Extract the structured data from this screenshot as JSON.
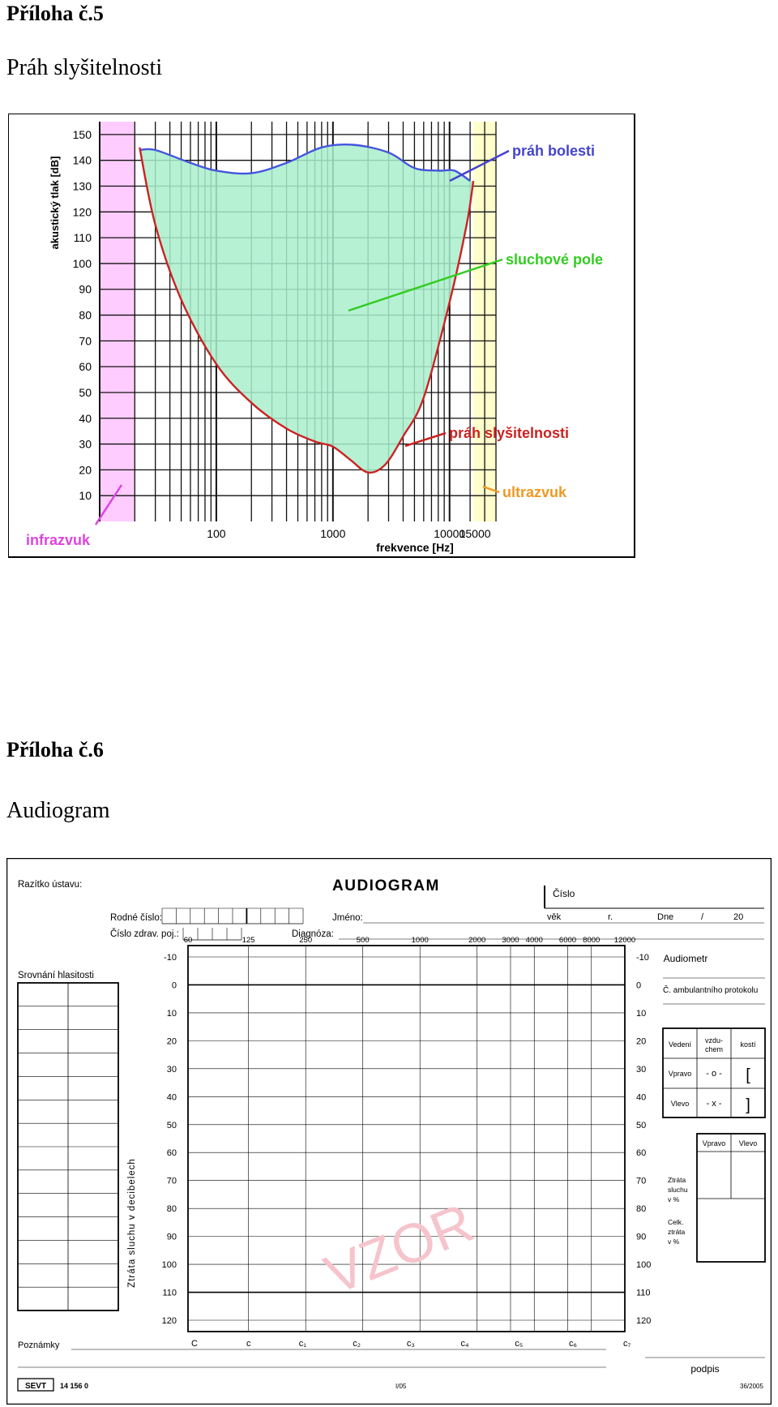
{
  "section5": {
    "heading": "Příloha č.5",
    "subheading": "Práh slyšitelnosti"
  },
  "section6": {
    "heading": "Příloha č.6",
    "subheading": "Audiogram"
  },
  "chart_data": {
    "type": "area",
    "xlabel": "frekvence [Hz]",
    "ylabel": "akustický tlak [dB]",
    "x_scale": "log",
    "xlim": [
      10,
      25000
    ],
    "ylim": [
      0,
      155
    ],
    "x_ticks": [
      100,
      1000,
      10000,
      15000
    ],
    "x_tick_labels": [
      "100",
      "1000",
      "10000",
      "15000"
    ],
    "y_ticks": [
      10,
      20,
      30,
      40,
      50,
      60,
      70,
      80,
      90,
      100,
      110,
      120,
      130,
      140,
      150
    ],
    "grid": true,
    "series": [
      {
        "name": "práh bolesti",
        "color": "#4455dd",
        "x": [
          22,
          30,
          60,
          100,
          200,
          400,
          800,
          1500,
          3000,
          5000,
          8000,
          11000,
          15000
        ],
        "y": [
          144,
          144,
          139,
          136,
          135,
          139,
          145,
          146,
          143,
          137,
          136,
          136,
          132
        ]
      },
      {
        "name": "práh slyšitelnosti",
        "color": "#cc2222",
        "x": [
          22,
          30,
          50,
          100,
          200,
          400,
          700,
          1000,
          1400,
          2000,
          2800,
          4000,
          6000,
          10000,
          14000,
          16000
        ],
        "y": [
          145,
          115,
          86,
          61,
          46,
          36,
          31,
          29,
          24,
          19,
          22,
          33,
          48,
          85,
          115,
          132
        ]
      }
    ],
    "regions": [
      {
        "label": "infrazvuk",
        "from": 10,
        "to": 20,
        "color": "#ffccff"
      },
      {
        "label": "ultrazvuk",
        "from": 16000,
        "to": 25000,
        "color": "#ffffcc"
      }
    ],
    "area_fill": {
      "label": "sluchové pole",
      "color": "#aaeecc"
    },
    "annotations": [
      {
        "text": "práh bolesti",
        "color": "#4444cc"
      },
      {
        "text": "sluchové pole",
        "color": "#33cc22"
      },
      {
        "text": "práh slyšitelnosti",
        "color": "#cc2222"
      },
      {
        "text": "infrazvuk",
        "color": "#dd44dd"
      },
      {
        "text": "ultrazvuk",
        "color": "#ee9922"
      }
    ]
  },
  "audiogram": {
    "stamp_label": "Razítko ústavu:",
    "title": "AUDIOGRAM",
    "number_label": "Číslo",
    "birth_no_label": "Rodné číslo:",
    "name_label": "Jméno:",
    "age_label": "věk",
    "year_label": "r.",
    "date_label": "Dne",
    "date_slash": "/",
    "date_year": "20",
    "insurance_label": "Číslo zdrav. poj.:",
    "diagnosis_label": "Diagnóza:",
    "loudness_label": "Srovnání hlasitosti",
    "audiometer_label": "Audiometr",
    "protocol_label": "Č. ambulantního protokolu",
    "vertical_label": "Ztráta sluchu v decibelech",
    "freq_labels": [
      "60",
      "125",
      "250",
      "500",
      "1000",
      "2000",
      "3000",
      "4000",
      "6000",
      "8000",
      "12000"
    ],
    "db_labels": [
      "-10",
      "0",
      "10",
      "20",
      "30",
      "40",
      "50",
      "60",
      "70",
      "80",
      "90",
      "100",
      "110",
      "120"
    ],
    "note_labels": [
      "C",
      "c",
      "c₁",
      "c₂",
      "c₃",
      "c₄",
      "c₅",
      "c₆",
      "c₇"
    ],
    "watermark": "VZOR",
    "conduction_table": {
      "header": [
        "Vedení",
        "vzdu-",
        "chem",
        "kostí"
      ],
      "right_label": "Vpravo",
      "right_air": "- o -",
      "right_bone": "[",
      "left_label": "Vlevo",
      "left_air": "- x -",
      "left_bone": "]"
    },
    "loss_table": {
      "col_right": "Vpravo",
      "col_left": "Vlevo",
      "row1": [
        "Ztráta",
        "sluchu",
        "v %"
      ],
      "row2": [
        "Celk.",
        "ztráta",
        "v %"
      ]
    },
    "notes_label": "Poznámky",
    "signature_label": "podpis",
    "logo_text": "SEVT",
    "form_code": "14 156 0",
    "footer_mid": "I/05",
    "footer_right": "36/2005"
  }
}
